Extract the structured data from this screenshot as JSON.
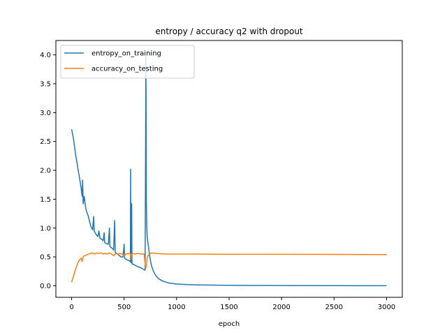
{
  "chart_data": {
    "type": "line",
    "title": "entropy / accuracy q2 with dropout",
    "xlabel": "epoch",
    "ylabel": "",
    "xlim": [
      -150,
      3150
    ],
    "ylim": [
      -0.2,
      4.25
    ],
    "xticks": [
      0,
      500,
      1000,
      1500,
      2000,
      2500,
      3000
    ],
    "yticks": [
      0.0,
      0.5,
      1.0,
      1.5,
      2.0,
      2.5,
      3.0,
      3.5,
      4.0
    ],
    "grid": false,
    "legend": "upper-left",
    "series": [
      {
        "name": "entropy_on_training",
        "color": "#1f77b4",
        "points": [
          [
            0,
            2.71
          ],
          [
            10,
            2.62
          ],
          [
            20,
            2.52
          ],
          [
            30,
            2.38
          ],
          [
            40,
            2.25
          ],
          [
            50,
            2.15
          ],
          [
            60,
            2.03
          ],
          [
            70,
            1.92
          ],
          [
            80,
            1.82
          ],
          [
            90,
            1.7
          ],
          [
            100,
            1.55
          ],
          [
            105,
            1.83
          ],
          [
            110,
            1.42
          ],
          [
            120,
            1.55
          ],
          [
            130,
            1.4
          ],
          [
            140,
            1.3
          ],
          [
            150,
            1.25
          ],
          [
            160,
            1.2
          ],
          [
            170,
            1.12
          ],
          [
            180,
            1.05
          ],
          [
            190,
            1.0
          ],
          [
            200,
            0.97
          ],
          [
            210,
            1.2
          ],
          [
            215,
            0.95
          ],
          [
            230,
            0.9
          ],
          [
            250,
            0.85
          ],
          [
            260,
            0.95
          ],
          [
            270,
            0.82
          ],
          [
            290,
            0.8
          ],
          [
            300,
            0.78
          ],
          [
            310,
            0.92
          ],
          [
            315,
            0.75
          ],
          [
            330,
            0.73
          ],
          [
            350,
            0.72
          ],
          [
            360,
            1.0
          ],
          [
            365,
            0.68
          ],
          [
            380,
            0.66
          ],
          [
            400,
            0.62
          ],
          [
            410,
            1.13
          ],
          [
            415,
            0.58
          ],
          [
            430,
            0.56
          ],
          [
            450,
            0.53
          ],
          [
            470,
            0.5
          ],
          [
            490,
            0.5
          ],
          [
            500,
            0.72
          ],
          [
            505,
            0.47
          ],
          [
            520,
            0.46
          ],
          [
            540,
            0.44
          ],
          [
            560,
            0.42
          ],
          [
            562,
            2.02
          ],
          [
            565,
            0.4
          ],
          [
            572,
            1.42
          ],
          [
            575,
            0.38
          ],
          [
            590,
            0.37
          ],
          [
            610,
            0.35
          ],
          [
            630,
            0.33
          ],
          [
            650,
            0.32
          ],
          [
            670,
            0.3
          ],
          [
            690,
            0.28
          ],
          [
            700,
            0.27
          ],
          [
            705,
            2.5
          ],
          [
            707,
            3.97
          ],
          [
            709,
            3.3
          ],
          [
            712,
            1.45
          ],
          [
            716,
            1.0
          ],
          [
            720,
            0.85
          ],
          [
            730,
            0.7
          ],
          [
            745,
            0.5
          ],
          [
            760,
            0.35
          ],
          [
            780,
            0.25
          ],
          [
            800,
            0.18
          ],
          [
            830,
            0.12
          ],
          [
            870,
            0.08
          ],
          [
            920,
            0.05
          ],
          [
            1000,
            0.03
          ],
          [
            1100,
            0.02
          ],
          [
            1200,
            0.015
          ],
          [
            1400,
            0.01
          ],
          [
            1700,
            0.006
          ],
          [
            2000,
            0.004
          ],
          [
            2500,
            0.002
          ],
          [
            3000,
            0.001
          ]
        ]
      },
      {
        "name": "accuracy_on_testing",
        "color": "#ff7f0e",
        "points": [
          [
            0,
            0.06
          ],
          [
            10,
            0.12
          ],
          [
            20,
            0.18
          ],
          [
            30,
            0.24
          ],
          [
            40,
            0.3
          ],
          [
            50,
            0.35
          ],
          [
            60,
            0.4
          ],
          [
            70,
            0.43
          ],
          [
            80,
            0.46
          ],
          [
            90,
            0.48
          ],
          [
            100,
            0.42
          ],
          [
            110,
            0.5
          ],
          [
            120,
            0.52
          ],
          [
            140,
            0.53
          ],
          [
            160,
            0.55
          ],
          [
            180,
            0.56
          ],
          [
            200,
            0.57
          ],
          [
            220,
            0.55
          ],
          [
            240,
            0.57
          ],
          [
            260,
            0.56
          ],
          [
            280,
            0.57
          ],
          [
            300,
            0.55
          ],
          [
            320,
            0.56
          ],
          [
            340,
            0.55
          ],
          [
            360,
            0.57
          ],
          [
            380,
            0.55
          ],
          [
            400,
            0.52
          ],
          [
            420,
            0.56
          ],
          [
            440,
            0.55
          ],
          [
            460,
            0.56
          ],
          [
            480,
            0.55
          ],
          [
            500,
            0.52
          ],
          [
            520,
            0.55
          ],
          [
            540,
            0.56
          ],
          [
            560,
            0.55
          ],
          [
            565,
            0.45
          ],
          [
            570,
            0.55
          ],
          [
            580,
            0.56
          ],
          [
            600,
            0.55
          ],
          [
            630,
            0.56
          ],
          [
            660,
            0.55
          ],
          [
            690,
            0.55
          ],
          [
            705,
            0.3
          ],
          [
            712,
            0.35
          ],
          [
            720,
            0.48
          ],
          [
            730,
            0.53
          ],
          [
            750,
            0.56
          ],
          [
            770,
            0.57
          ],
          [
            800,
            0.56
          ],
          [
            900,
            0.55
          ],
          [
            1000,
            0.55
          ],
          [
            1200,
            0.55
          ],
          [
            1500,
            0.545
          ],
          [
            2000,
            0.545
          ],
          [
            2500,
            0.543
          ],
          [
            3000,
            0.54
          ]
        ]
      }
    ]
  }
}
